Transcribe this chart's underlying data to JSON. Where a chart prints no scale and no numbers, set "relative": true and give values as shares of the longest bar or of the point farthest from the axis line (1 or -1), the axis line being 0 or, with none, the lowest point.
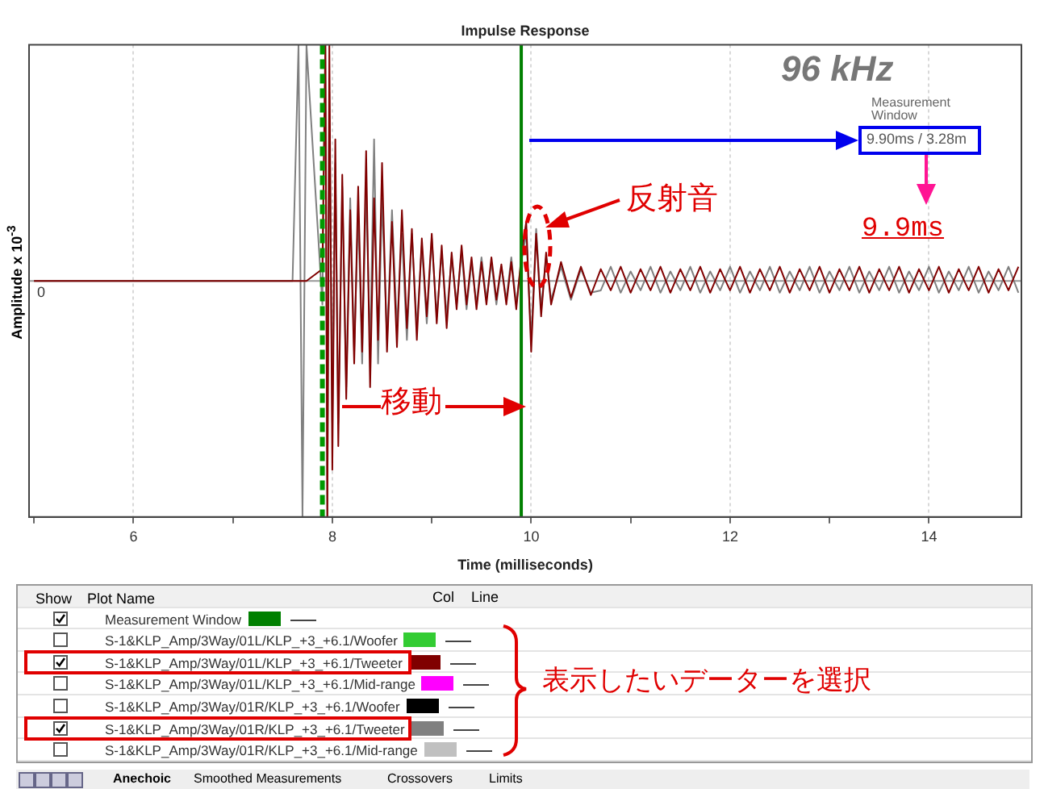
{
  "chart_data": {
    "type": "line",
    "title": "Impulse Response",
    "xlabel": "Time (milliseconds)",
    "ylabel": "Amplitude x 10$^{-3}$",
    "relative": true,
    "x": [
      5,
      7.6,
      7.66,
      7.7,
      7.74,
      7.9,
      7.93,
      7.95,
      7.97,
      8.0,
      8.03,
      8.06,
      8.1,
      8.14,
      8.18,
      8.22,
      8.26,
      8.3,
      8.34,
      8.38,
      8.42,
      8.46,
      8.5,
      8.55,
      8.6,
      8.65,
      8.7,
      8.75,
      8.8,
      8.85,
      8.9,
      8.95,
      9.0,
      9.05,
      9.1,
      9.15,
      9.2,
      9.25,
      9.3,
      9.35,
      9.4,
      9.45,
      9.5,
      9.55,
      9.6,
      9.65,
      9.7,
      9.75,
      9.8,
      9.85,
      9.9,
      9.95,
      10.0,
      10.05,
      10.1,
      10.15,
      10.2,
      10.3,
      10.4,
      10.5,
      10.6,
      10.7,
      10.8,
      10.9,
      11.0,
      11.1,
      11.2,
      11.3,
      11.4,
      11.5,
      11.6,
      11.7,
      11.8,
      11.9,
      12.0,
      12.1,
      12.2,
      12.3,
      12.4,
      12.5,
      12.6,
      12.7,
      12.8,
      12.9,
      13.0,
      13.1,
      13.2,
      13.3,
      13.4,
      13.5,
      13.6,
      13.7,
      13.8,
      13.9,
      14.0,
      14.1,
      14.2,
      14.3,
      14.4,
      14.5,
      14.6,
      14.7,
      14.8,
      14.9
    ],
    "series": [
      {
        "name": "S-1&KLP_Amp/3Way/01L/KLP_+3_+6.1/Woofer",
        "color": "#33cc33",
        "values": [
          null,
          null,
          null,
          null,
          null,
          null,
          null,
          null,
          null,
          null,
          null,
          null,
          null,
          null,
          null,
          null,
          null,
          null,
          null,
          null,
          null,
          null,
          null,
          null,
          null,
          null,
          null,
          null,
          null,
          null,
          null,
          null,
          null,
          null,
          null,
          null,
          null,
          null,
          null,
          null,
          null,
          null,
          null,
          null,
          null,
          null,
          null,
          null,
          null,
          null,
          null,
          null,
          null,
          null,
          null,
          null,
          null,
          null,
          null,
          null,
          null,
          null,
          null,
          null,
          null,
          null,
          null,
          null,
          null,
          null,
          null,
          null,
          null,
          null,
          null,
          null,
          null,
          null,
          null,
          null,
          null,
          null,
          null,
          null,
          null,
          null,
          null,
          null,
          null,
          null,
          null,
          null,
          null,
          null,
          null,
          null,
          null,
          null,
          null,
          null,
          null,
          null,
          null,
          null
        ]
      },
      {
        "name": "S-1&KLP_Amp/3Way/01L/KLP_+3_+6.1/Tweeter",
        "color": "#800000",
        "values": [
          0,
          0,
          0,
          0,
          0,
          0.05,
          1,
          -1,
          1,
          -0.8,
          0.6,
          -0.7,
          0.45,
          -0.5,
          0.3,
          -0.35,
          0.4,
          -0.3,
          0.55,
          -0.45,
          0.35,
          -0.25,
          0.5,
          -0.3,
          0.25,
          -0.28,
          0.3,
          -0.2,
          0.22,
          -0.25,
          0.18,
          -0.15,
          0.2,
          -0.18,
          0.15,
          -0.2,
          0.12,
          -0.12,
          0.15,
          -0.1,
          0.1,
          -0.12,
          0.08,
          -0.1,
          0.1,
          -0.08,
          0.07,
          -0.1,
          0.08,
          -0.12,
          0.1,
          0.25,
          -0.3,
          0.2,
          -0.15,
          0.12,
          -0.1,
          0.08,
          -0.07,
          0.06,
          -0.06,
          0.05,
          -0.04,
          0.06,
          -0.05,
          0.05,
          -0.04,
          0.06,
          -0.05,
          0.05,
          -0.04,
          0.06,
          -0.05,
          0.05,
          -0.04,
          0.06,
          -0.05,
          0.05,
          -0.04,
          0.06,
          -0.05,
          0.05,
          -0.04,
          0.06,
          -0.05,
          0.05,
          -0.04,
          0.06,
          -0.05,
          0.05,
          -0.04,
          0.06,
          -0.05,
          0.05,
          -0.04,
          0.06,
          -0.05,
          0.05,
          -0.04,
          0.06,
          -0.05,
          0.05,
          -0.04,
          0.06
        ]
      },
      {
        "name": "S-1&KLP_Amp/3Way/01L/KLP_+3_+6.1/Mid-range",
        "color": "#ff00ff",
        "values": [
          null,
          null,
          null,
          null,
          null,
          null,
          null,
          null,
          null,
          null,
          null,
          null,
          null,
          null,
          null,
          null,
          null,
          null,
          null,
          null,
          null,
          null,
          null,
          null,
          null,
          null,
          null,
          null,
          null,
          null,
          null,
          null,
          null,
          null,
          null,
          null,
          null,
          null,
          null,
          null,
          null,
          null,
          null,
          null,
          null,
          null,
          null,
          null,
          null,
          null,
          null,
          null,
          null,
          null,
          null,
          null,
          null,
          null,
          null,
          null,
          null,
          null,
          null,
          null,
          null,
          null,
          null,
          null,
          null,
          null,
          null,
          null,
          null,
          null,
          null,
          null,
          null,
          null,
          null,
          null,
          null,
          null,
          null,
          null,
          null,
          null,
          null,
          null,
          null,
          null,
          null,
          null,
          null,
          null,
          null,
          null,
          null,
          null,
          null,
          null,
          null,
          null,
          null,
          null
        ]
      },
      {
        "name": "S-1&KLP_Amp/3Way/01R/KLP_+3_+6.1/Woofer",
        "color": "#000000",
        "values": [
          null,
          null,
          null,
          null,
          null,
          null,
          null,
          null,
          null,
          null,
          null,
          null,
          null,
          null,
          null,
          null,
          null,
          null,
          null,
          null,
          null,
          null,
          null,
          null,
          null,
          null,
          null,
          null,
          null,
          null,
          null,
          null,
          null,
          null,
          null,
          null,
          null,
          null,
          null,
          null,
          null,
          null,
          null,
          null,
          null,
          null,
          null,
          null,
          null,
          null,
          null,
          null,
          null,
          null,
          null,
          null,
          null,
          null,
          null,
          null,
          null,
          null,
          null,
          null,
          null,
          null,
          null,
          null,
          null,
          null,
          null,
          null,
          null,
          null,
          null,
          null,
          null,
          null,
          null,
          null,
          null,
          null,
          null,
          null,
          null,
          null,
          null,
          null,
          null,
          null,
          null,
          null,
          null,
          null,
          null,
          null,
          null,
          null,
          null,
          null,
          null,
          null,
          null,
          null
        ]
      },
      {
        "name": "S-1&KLP_Amp/3Way/01R/KLP_+3_+6.1/Tweeter",
        "color": "#808080",
        "values": [
          0,
          0,
          1,
          -1,
          1,
          -0.1,
          1,
          -1,
          0.8,
          -0.6,
          0.5,
          -0.6,
          0.4,
          -0.45,
          0.35,
          -0.3,
          0.3,
          -0.35,
          0.4,
          -0.3,
          0.6,
          -0.35,
          0.35,
          -0.25,
          0.3,
          -0.2,
          0.2,
          -0.25,
          0.2,
          -0.2,
          0.15,
          -0.18,
          0.18,
          -0.15,
          0.12,
          -0.15,
          0.1,
          -0.1,
          0.12,
          -0.12,
          0.08,
          -0.1,
          0.1,
          -0.08,
          0.08,
          -0.1,
          0.06,
          -0.08,
          0.1,
          -0.1,
          0.08,
          0.2,
          -0.25,
          0.22,
          -0.12,
          0.1,
          -0.08,
          0.06,
          -0.08,
          0.05,
          -0.05,
          -0.04,
          0.06,
          -0.05,
          0.04,
          -0.04,
          0.06,
          -0.05,
          0.04,
          -0.04,
          0.06,
          -0.05,
          0.04,
          -0.04,
          0.06,
          -0.05,
          0.04,
          -0.04,
          0.06,
          -0.05,
          0.04,
          -0.04,
          0.06,
          -0.05,
          0.04,
          -0.04,
          0.06,
          -0.05,
          0.04,
          -0.04,
          0.06,
          -0.05,
          0.04,
          -0.04,
          0.06,
          -0.05,
          0.04,
          -0.04,
          0.06,
          -0.05,
          0.04,
          -0.04,
          0.06,
          -0.05
        ]
      },
      {
        "name": "S-1&KLP_Amp/3Way/01R/KLP_+3_+6.1/Mid-range",
        "color": "#c0c0c0",
        "values": [
          null,
          null,
          null,
          null,
          null,
          null,
          null,
          null,
          null,
          null,
          null,
          null,
          null,
          null,
          null,
          null,
          null,
          null,
          null,
          null,
          null,
          null,
          null,
          null,
          null,
          null,
          null,
          null,
          null,
          null,
          null,
          null,
          null,
          null,
          null,
          null,
          null,
          null,
          null,
          null,
          null,
          null,
          null,
          null,
          null,
          null,
          null,
          null,
          null,
          null,
          null,
          null,
          null,
          null,
          null,
          null,
          null,
          null,
          null,
          null,
          null,
          null,
          null,
          null,
          null,
          null,
          null,
          null,
          null,
          null,
          null,
          null,
          null,
          null,
          null,
          null,
          null,
          null,
          null,
          null,
          null,
          null,
          null,
          null,
          null,
          null,
          null,
          null,
          null,
          null,
          null,
          null,
          null,
          null,
          null,
          null,
          null,
          null,
          null,
          null,
          null,
          null,
          null,
          null
        ]
      }
    ],
    "xlim": [
      4.95,
      14.93
    ],
    "xticks": [
      {
        "value": 5,
        "label": null
      },
      6,
      {
        "value": 7,
        "label": null
      },
      8,
      {
        "value": 9,
        "label": null
      },
      10,
      {
        "value": 11,
        "label": null
      },
      12,
      {
        "value": 13,
        "label": null
      },
      14
    ],
    "ref_lines": [
      {
        "axis": "x",
        "value": 9.9,
        "color": "#008000"
      },
      {
        "axis": "y",
        "value": 0,
        "label": "0",
        "color": "#999999"
      },
      {
        "axis": "x",
        "value": 7.9,
        "color": "#009900",
        "line_style": "dashed"
      }
    ],
    "annotations": [
      "96 kHz",
      "Measurement Window",
      "9.90ms / 3.28m",
      "反射音",
      "9.9ms",
      "移動",
      "表示したいデーターを選択",
      "Anechoic",
      "Smoothed Measurements",
      "Crossovers",
      "Limits",
      "Show",
      "Plot Name",
      "Col",
      "Line",
      "Measurement Window"
    ],
    "grid": "x",
    "legend": "bottom",
    "marker": "none",
    "line_style": "solid"
  }
}
